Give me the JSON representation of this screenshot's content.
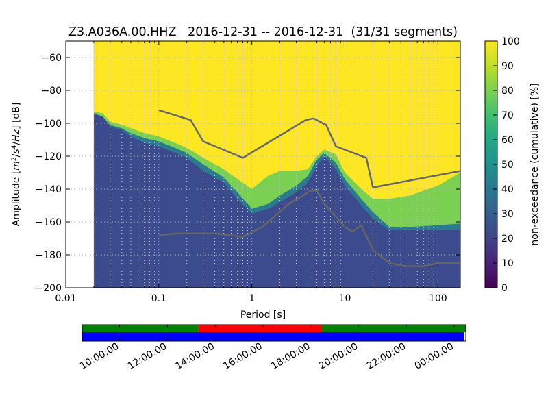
{
  "chart_data": [
    {
      "type": "heatmap",
      "title": "Z3.A036A.00.HHZ   2016-12-31 -- 2016-12-31  (31/31 segments)",
      "xlabel": "Period [s]",
      "ylabel": "Amplitude [$m^2/s^4/Hz$] [dB]",
      "xscale": "log",
      "xlim": [
        0.01,
        174
      ],
      "ylim": [
        -200,
        -50
      ],
      "xticks": [
        "0.01",
        "0.1",
        "1",
        "10",
        "100"
      ],
      "yticks": [
        "-60",
        "-80",
        "-100",
        "-120",
        "-140",
        "-160",
        "-180",
        "-200"
      ],
      "grid": true,
      "data_start_period": 0.02,
      "colorbar": {
        "label": "non-exceedance (cumulative) [%]",
        "range": [
          0,
          100
        ],
        "ticks": [
          "0",
          "10",
          "20",
          "30",
          "40",
          "50",
          "60",
          "70",
          "80",
          "90",
          "100"
        ]
      },
      "percentile_boundaries": {
        "x": [
          0.02,
          0.025,
          0.03,
          0.04,
          0.05,
          0.07,
          0.1,
          0.15,
          0.2,
          0.3,
          0.5,
          0.7,
          1,
          1.5,
          2,
          3,
          4,
          5,
          6,
          8,
          10,
          15,
          20,
          30,
          50,
          100,
          174
        ],
        "p20": [
          -94,
          -96,
          -102,
          -104,
          -108,
          -112,
          -114,
          -118,
          -121,
          -129,
          -136,
          -146,
          -155,
          -152,
          -148,
          -142,
          -136,
          -126,
          -120,
          -128,
          -138,
          -150,
          -158,
          -165,
          -165,
          -165,
          -165
        ],
        "p50": [
          -94,
          -96,
          -101,
          -103,
          -106,
          -109,
          -111,
          -115,
          -118,
          -125,
          -133,
          -142,
          -152,
          -149,
          -144,
          -138,
          -132,
          -122,
          -118,
          -124,
          -134,
          -146,
          -154,
          -163,
          -163,
          -162,
          -161
        ],
        "p90": [
          -93,
          -94,
          -99,
          -101,
          -103,
          -106,
          -108,
          -112,
          -115,
          -121,
          -128,
          -134,
          -140,
          -132,
          -129,
          -129,
          -128,
          -120,
          -116,
          -119,
          -130,
          -140,
          -146,
          -146,
          -144,
          -138,
          -130
        ]
      },
      "series": [
        {
          "x": [
            0.1,
            0.22,
            0.3,
            0.8,
            3.8,
            4.6,
            6.3,
            8,
            17,
            20,
            174
          ],
          "y": [
            -92,
            -98,
            -111,
            -121,
            -98,
            -97,
            -101,
            -114,
            -121,
            -139,
            -129
          ]
        },
        {
          "x": [
            0.1,
            0.16,
            0.4,
            0.8,
            1.3,
            2.5,
            4.3,
            5,
            6,
            10,
            12,
            15,
            20,
            30,
            45,
            70,
            100,
            174
          ],
          "y": [
            -168,
            -167,
            -167,
            -169,
            -163,
            -149,
            -141,
            -141,
            -149,
            -163,
            -166,
            -162,
            -177,
            -185,
            -187,
            -187,
            -185,
            -185
          ]
        }
      ]
    },
    {
      "type": "timeline",
      "xticks": [
        "10:00:00",
        "12:00:00",
        "14:00:00",
        "16:00:00",
        "18:00:00",
        "20:00:00",
        "22:00:00",
        "00:00:00"
      ],
      "top_bar": [
        {
          "from": 0.0,
          "to": 0.303,
          "color": "#008000"
        },
        {
          "from": 0.303,
          "to": 0.625,
          "color": "#ff0000"
        },
        {
          "from": 0.625,
          "to": 1.0,
          "color": "#008000"
        }
      ],
      "bottom_bar": [
        {
          "from": 0.0,
          "to": 0.995,
          "color": "#0000ff"
        }
      ]
    }
  ]
}
